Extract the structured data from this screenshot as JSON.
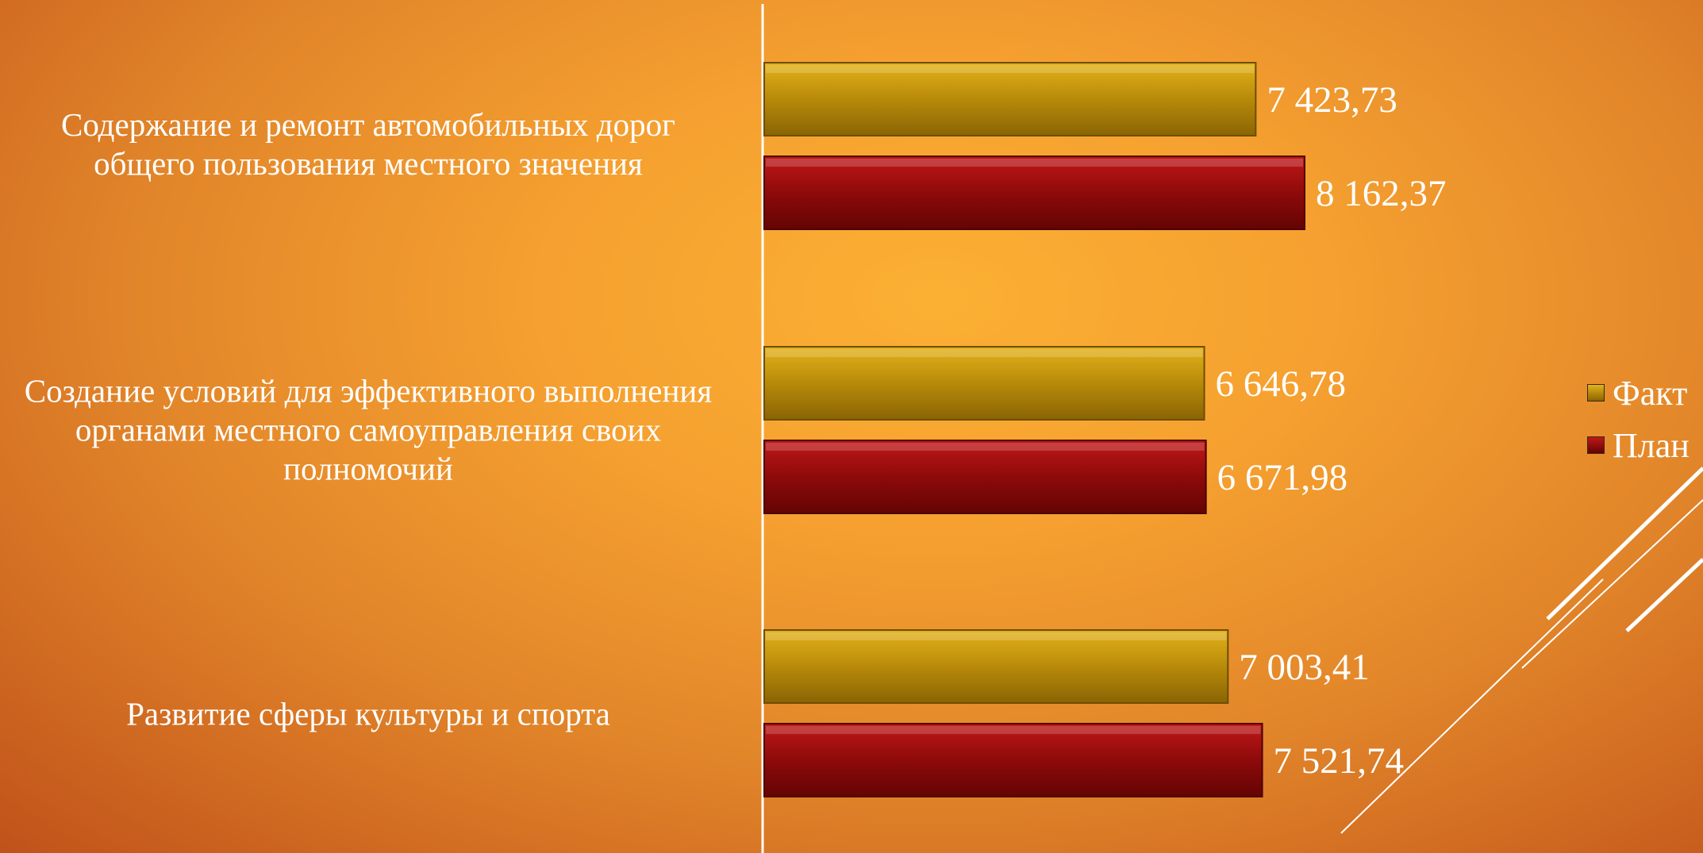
{
  "chart_data": {
    "type": "bar",
    "orientation": "horizontal",
    "categories": [
      "Содержание и ремонт автомобильных дорог общего пользования местного значения",
      "Создание условий для эффективного выполнения органами местного самоуправления своих полномочий",
      "Развитие сферы культуры и спорта"
    ],
    "series": [
      {
        "name": "Факт",
        "values": [
          7423.73,
          6646.78,
          7003.41
        ],
        "labels": [
          "7 423,73",
          "6 646,78",
          "7 003,41"
        ],
        "color": "#b88a0a"
      },
      {
        "name": "План",
        "values": [
          8162.37,
          6671.98,
          7521.74
        ],
        "labels": [
          "8 162,37",
          "6 671,98",
          "7 521,74"
        ],
        "color": "#8e0a0a"
      }
    ],
    "grid": false,
    "legend_position": "right"
  },
  "colors": {
    "fact": "#b88a0a",
    "plan": "#8e0a0a",
    "axis": "#ffffff"
  }
}
